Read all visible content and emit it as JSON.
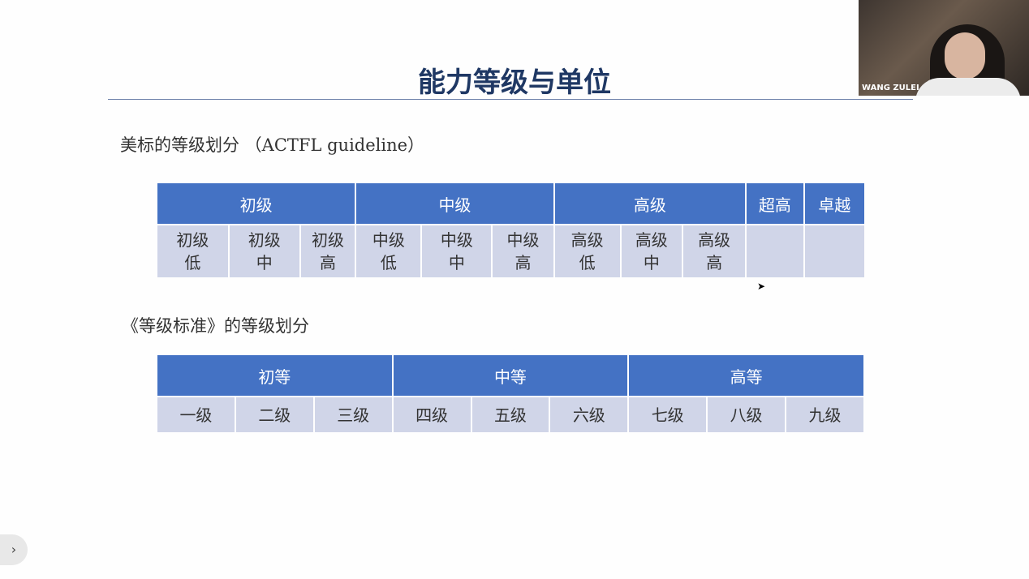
{
  "slide": {
    "title": "能力等级与单位",
    "section1": "美标的等级划分 （ACTFL guideline）",
    "section2": "《等级标准》的等级划分",
    "table1": {
      "headers": [
        "初级",
        "中级",
        "高级",
        "超高",
        "卓越"
      ],
      "cells": [
        [
          "初级",
          "低"
        ],
        [
          "初级",
          "中"
        ],
        [
          "初级",
          "高"
        ],
        [
          "中级",
          "低"
        ],
        [
          "中级",
          "中"
        ],
        [
          "中级",
          "高"
        ],
        [
          "高级",
          "低"
        ],
        [
          "高级",
          "中"
        ],
        [
          "高级",
          "高"
        ],
        [
          "",
          ""
        ],
        [
          "",
          ""
        ]
      ]
    },
    "table2": {
      "headers": [
        "初等",
        "中等",
        "高等"
      ],
      "cells": [
        "一级",
        "二级",
        "三级",
        "四级",
        "五级",
        "六级",
        "七级",
        "八级",
        "九级"
      ]
    }
  },
  "video": {
    "participant_name": "WANG ZULEI"
  },
  "colors": {
    "header_blue": "#4472c4",
    "cell_bg": "#d0d5e8",
    "title": "#1f3864"
  },
  "icons": {
    "expand": "chevron-right-icon"
  }
}
